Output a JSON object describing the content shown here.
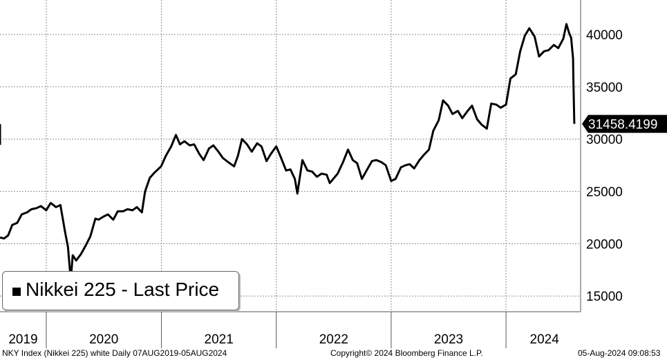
{
  "chart_data": {
    "type": "line",
    "title": "",
    "xlabel": "",
    "ylabel": "",
    "ylim": [
      13500,
      43300
    ],
    "xlim": [
      "2019-08-07",
      "2024-08-25"
    ],
    "y_ticks": [
      15000,
      20000,
      25000,
      30000,
      35000,
      40000
    ],
    "y_tick_labels": [
      "15000",
      "20000",
      "25000",
      "30000",
      "35000",
      "40000"
    ],
    "x_year_labels": [
      "2019",
      "2020",
      "2021",
      "2022",
      "2023",
      "2024"
    ],
    "grid": true,
    "legend_position": "bottom-left",
    "last_value_label": "31458.4199",
    "series": [
      {
        "name": "Nikkei 225 - Last Price",
        "color": "#000000",
        "x": [
          "2019-08-07",
          "2019-08-20",
          "2019-09-02",
          "2019-09-15",
          "2019-10-01",
          "2019-10-15",
          "2019-11-01",
          "2019-11-15",
          "2019-12-01",
          "2019-12-15",
          "2020-01-01",
          "2020-01-15",
          "2020-02-01",
          "2020-02-15",
          "2020-03-01",
          "2020-03-10",
          "2020-03-19",
          "2020-03-25",
          "2020-04-05",
          "2020-04-20",
          "2020-05-05",
          "2020-05-20",
          "2020-06-05",
          "2020-06-15",
          "2020-07-01",
          "2020-07-15",
          "2020-08-01",
          "2020-08-15",
          "2020-09-01",
          "2020-09-15",
          "2020-10-01",
          "2020-10-15",
          "2020-10-31",
          "2020-11-10",
          "2020-11-25",
          "2020-12-10",
          "2020-12-31",
          "2021-01-15",
          "2021-02-01",
          "2021-02-16",
          "2021-03-01",
          "2021-03-15",
          "2021-04-01",
          "2021-04-15",
          "2021-05-01",
          "2021-05-15",
          "2021-06-01",
          "2021-06-15",
          "2021-07-01",
          "2021-07-15",
          "2021-08-01",
          "2021-08-20",
          "2021-09-01",
          "2021-09-14",
          "2021-09-30",
          "2021-10-15",
          "2021-11-01",
          "2021-11-15",
          "2021-12-01",
          "2021-12-15",
          "2022-01-01",
          "2022-01-15",
          "2022-02-01",
          "2022-02-15",
          "2022-03-01",
          "2022-03-09",
          "2022-03-25",
          "2022-04-10",
          "2022-04-25",
          "2022-05-10",
          "2022-05-25",
          "2022-06-10",
          "2022-06-20",
          "2022-07-01",
          "2022-07-15",
          "2022-08-01",
          "2022-08-17",
          "2022-09-01",
          "2022-09-15",
          "2022-09-30",
          "2022-10-15",
          "2022-11-01",
          "2022-11-15",
          "2022-12-01",
          "2022-12-15",
          "2023-01-01",
          "2023-01-15",
          "2023-02-01",
          "2023-02-15",
          "2023-03-01",
          "2023-03-15",
          "2023-04-01",
          "2023-04-15",
          "2023-05-01",
          "2023-05-15",
          "2023-06-01",
          "2023-06-15",
          "2023-07-01",
          "2023-07-15",
          "2023-08-01",
          "2023-08-15",
          "2023-09-01",
          "2023-09-15",
          "2023-10-01",
          "2023-10-15",
          "2023-11-01",
          "2023-11-15",
          "2023-12-01",
          "2023-12-15",
          "2024-01-01",
          "2024-01-15",
          "2024-02-01",
          "2024-02-15",
          "2024-03-01",
          "2024-03-15",
          "2024-04-01",
          "2024-04-15",
          "2024-05-01",
          "2024-05-15",
          "2024-06-01",
          "2024-06-15",
          "2024-07-01",
          "2024-07-11",
          "2024-07-20",
          "2024-07-26",
          "2024-08-01",
          "2024-08-02",
          "2024-08-05"
        ],
        "values": [
          20600,
          20500,
          20800,
          21800,
          22000,
          22800,
          23000,
          23300,
          23400,
          23600,
          23200,
          23900,
          23500,
          23700,
          21100,
          19700,
          16550,
          18900,
          18400,
          19000,
          19800,
          20700,
          22400,
          22300,
          22600,
          22800,
          22300,
          23100,
          23100,
          23300,
          23200,
          23500,
          23000,
          25000,
          26300,
          26800,
          27400,
          28400,
          29300,
          30400,
          29500,
          29800,
          29400,
          29500,
          28600,
          28000,
          29100,
          29400,
          28800,
          28200,
          27800,
          27400,
          28400,
          30000,
          29500,
          28800,
          29600,
          29300,
          27900,
          28600,
          29300,
          28300,
          27000,
          27100,
          26200,
          24800,
          28000,
          27000,
          26900,
          26400,
          26700,
          26600,
          25800,
          26200,
          26700,
          27800,
          29000,
          28000,
          27700,
          26200,
          27000,
          27900,
          28000,
          27800,
          27500,
          26000,
          26200,
          27300,
          27500,
          27600,
          27200,
          28000,
          28500,
          29000,
          30800,
          31800,
          33700,
          33200,
          32400,
          32700,
          32000,
          32700,
          33200,
          31900,
          31400,
          31000,
          33400,
          33300,
          33000,
          33300,
          35800,
          36200,
          38400,
          39900,
          40600,
          39800,
          37900,
          38400,
          38500,
          39000,
          38700,
          39600,
          41000,
          40100,
          39700,
          37700,
          35900,
          31458.4199
        ]
      }
    ]
  },
  "footer": {
    "left": "NKY Index (Nikkei 225) white  Daily 07AUG2019-05AUG2024",
    "center": "Copyright© 2024 Bloomberg Finance L.P.",
    "right": "05-Aug-2024 09:08:53"
  },
  "colors": {
    "line": "#000000",
    "grid": "#8c8c8c",
    "background": "#ffffff",
    "tag_fill": "#000000",
    "tag_text": "#ffffff"
  }
}
